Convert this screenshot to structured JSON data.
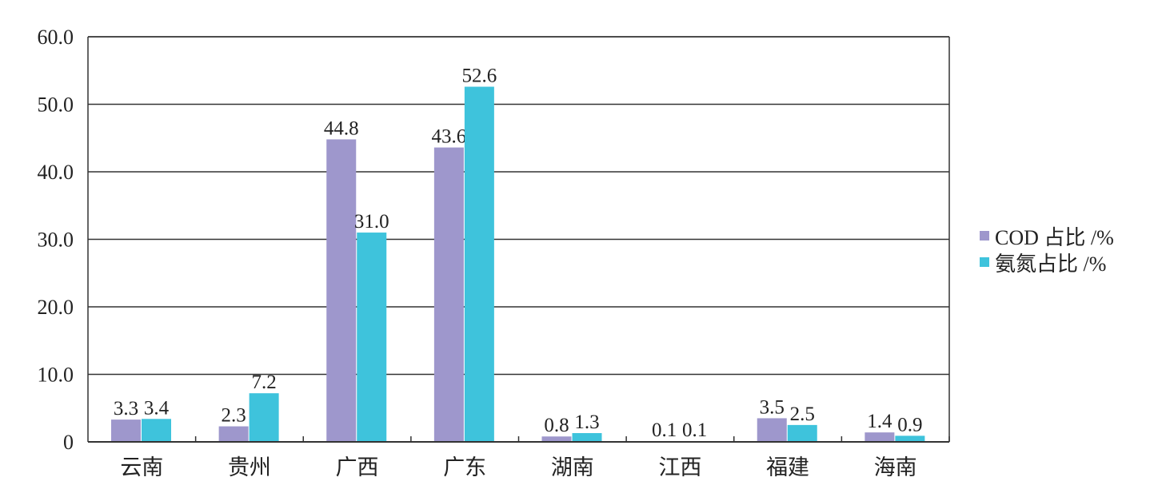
{
  "chart_data": {
    "type": "bar",
    "title": "",
    "xlabel": "",
    "ylabel": "",
    "categories": [
      "云南",
      "贵州",
      "广西",
      "广东",
      "湖南",
      "江西",
      "福建",
      "海南"
    ],
    "series": [
      {
        "name": "COD 占比 /%",
        "color": "#9e97cc",
        "values": [
          3.3,
          2.3,
          44.8,
          43.6,
          0.8,
          0.1,
          3.5,
          1.4
        ]
      },
      {
        "name": "氨氮占比 /%",
        "color": "#3ec3dc",
        "values": [
          3.4,
          7.2,
          31.0,
          52.6,
          1.3,
          0.1,
          2.5,
          0.9
        ]
      }
    ],
    "ylim": [
      0,
      60
    ],
    "yticks": [
      "0",
      "10.0",
      "20.0",
      "30.0",
      "40.0",
      "50.0",
      "60.0"
    ],
    "grid": true,
    "legend": "right"
  }
}
